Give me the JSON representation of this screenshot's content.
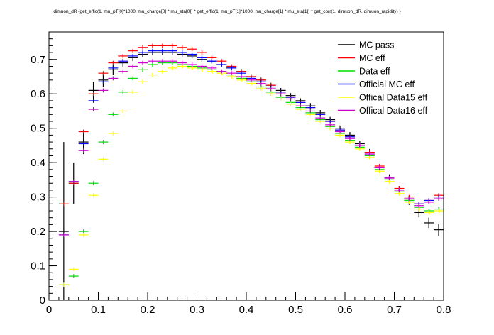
{
  "chart_data": {
    "type": "scatter",
    "title": "dimuon_dR {get_effic(1, mu_pT[0]*1000, mu_charge[0] * mu_eta[0]) * get_effic(1, mu_pT[1]*1000, mu_charge[1] * mu_eta[1]) * get_corr(1, dimuon_dR, dimuon_rapidity) }",
    "xlabel": "",
    "ylabel": "",
    "xlim": [
      0,
      0.8
    ],
    "ylim": [
      0,
      0.78
    ],
    "x_ticks": [
      "0",
      "0.1",
      "0.2",
      "0.3",
      "0.4",
      "0.5",
      "0.6",
      "0.7",
      "0.8"
    ],
    "y_ticks": [
      "0",
      "0.1",
      "0.2",
      "0.3",
      "0.4",
      "0.5",
      "0.6",
      "0.7"
    ],
    "grid": false,
    "legend_position": "top-right",
    "bin_half_width": 0.01,
    "x": [
      0.03,
      0.05,
      0.07,
      0.09,
      0.11,
      0.13,
      0.15,
      0.17,
      0.19,
      0.21,
      0.23,
      0.25,
      0.27,
      0.29,
      0.31,
      0.33,
      0.35,
      0.37,
      0.39,
      0.41,
      0.43,
      0.45,
      0.47,
      0.49,
      0.51,
      0.53,
      0.55,
      0.57,
      0.59,
      0.61,
      0.63,
      0.65,
      0.67,
      0.69,
      0.71,
      0.73,
      0.75,
      0.77,
      0.79
    ],
    "series": [
      {
        "name": "MC pass",
        "color": "#000000",
        "values": [
          0.2,
          0.34,
          0.46,
          0.61,
          0.64,
          0.67,
          0.69,
          0.705,
          0.715,
          0.72,
          0.72,
          0.72,
          0.715,
          0.71,
          0.7,
          0.695,
          0.685,
          0.675,
          0.665,
          0.65,
          0.64,
          0.625,
          0.61,
          0.595,
          0.58,
          0.565,
          0.545,
          0.525,
          0.5,
          0.48,
          0.455,
          0.43,
          0.385,
          0.355,
          0.32,
          0.29,
          0.255,
          0.225,
          0.205
        ],
        "errors": [
          0.26,
          0.06,
          0.035,
          0.025,
          0.02,
          0.015,
          0.012,
          0.01,
          0.008,
          0.008,
          0.007,
          0.007,
          0.007,
          0.007,
          0.007,
          0.007,
          0.007,
          0.007,
          0.007,
          0.007,
          0.007,
          0.007,
          0.007,
          0.007,
          0.007,
          0.008,
          0.008,
          0.008,
          0.008,
          0.009,
          0.009,
          0.01,
          0.01,
          0.011,
          0.012,
          0.013,
          0.014,
          0.015,
          0.018
        ]
      },
      {
        "name": "MC eff",
        "color": "#ff0000",
        "values": [
          0.28,
          0.34,
          0.49,
          0.6,
          0.66,
          0.69,
          0.71,
          0.725,
          0.735,
          0.74,
          0.74,
          0.74,
          0.735,
          0.73,
          0.72,
          0.705,
          0.695,
          0.68,
          0.665,
          0.65,
          0.64,
          0.625,
          0.605,
          0.59,
          0.575,
          0.56,
          0.54,
          0.52,
          0.495,
          0.475,
          0.45,
          0.43,
          0.39,
          0.355,
          0.325,
          0.3,
          0.28,
          0.29,
          0.305
        ]
      },
      {
        "name": "Data eff",
        "color": "#00dd00",
        "values": [
          0.045,
          0.07,
          0.2,
          0.34,
          0.46,
          0.54,
          0.605,
          0.645,
          0.67,
          0.685,
          0.69,
          0.69,
          0.685,
          0.68,
          0.675,
          0.67,
          0.665,
          0.655,
          0.645,
          0.635,
          0.62,
          0.605,
          0.59,
          0.575,
          0.56,
          0.545,
          0.525,
          0.505,
          0.485,
          0.465,
          0.445,
          0.42,
          0.38,
          0.35,
          0.315,
          0.29,
          0.27,
          0.26,
          0.265
        ]
      },
      {
        "name": "Official MC eff",
        "color": "#0000ff",
        "values": [
          0.19,
          0.345,
          0.455,
          0.58,
          0.635,
          0.675,
          0.695,
          0.71,
          0.72,
          0.725,
          0.725,
          0.725,
          0.72,
          0.715,
          0.705,
          0.695,
          0.685,
          0.675,
          0.66,
          0.645,
          0.635,
          0.62,
          0.605,
          0.59,
          0.575,
          0.56,
          0.54,
          0.52,
          0.495,
          0.475,
          0.45,
          0.425,
          0.385,
          0.355,
          0.32,
          0.295,
          0.28,
          0.29,
          0.3
        ]
      },
      {
        "name": "Offical Data15 eff",
        "color": "#ffff00",
        "values": [
          0.045,
          0.09,
          0.19,
          0.305,
          0.41,
          0.485,
          0.55,
          0.605,
          0.635,
          0.655,
          0.665,
          0.675,
          0.68,
          0.675,
          0.67,
          0.665,
          0.66,
          0.65,
          0.64,
          0.63,
          0.615,
          0.6,
          0.585,
          0.57,
          0.555,
          0.54,
          0.52,
          0.5,
          0.48,
          0.46,
          0.44,
          0.415,
          0.375,
          0.345,
          0.31,
          0.285,
          0.265,
          0.255,
          0.26
        ]
      },
      {
        "name": "Offical Data16 eff",
        "color": "#cc00cc",
        "values": [
          0.19,
          0.345,
          0.435,
          0.555,
          0.61,
          0.645,
          0.665,
          0.68,
          0.69,
          0.695,
          0.695,
          0.695,
          0.69,
          0.685,
          0.68,
          0.675,
          0.665,
          0.66,
          0.65,
          0.64,
          0.63,
          0.615,
          0.6,
          0.585,
          0.565,
          0.55,
          0.53,
          0.51,
          0.49,
          0.47,
          0.45,
          0.425,
          0.385,
          0.355,
          0.32,
          0.295,
          0.275,
          0.285,
          0.295
        ]
      }
    ]
  }
}
